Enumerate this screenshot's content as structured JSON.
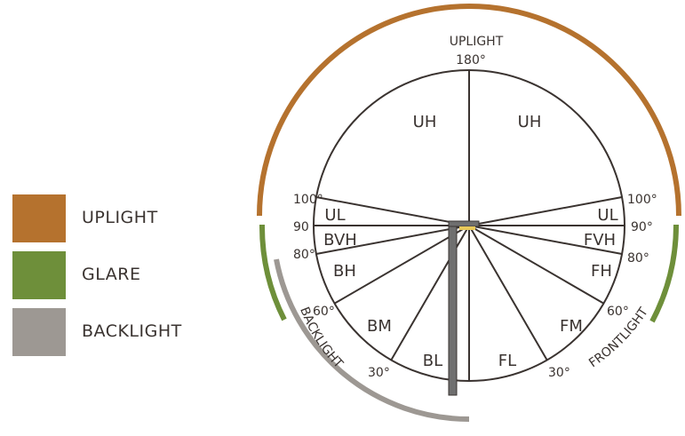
{
  "colors": {
    "uplight": "#b5722e",
    "glare": "#6e8f3a",
    "backlight": "#9d9893",
    "line": "#3a3330",
    "pole": "#6f6f6f",
    "lamp": "#e9c95a"
  },
  "legend": [
    {
      "key": "uplight",
      "label": "UPLIGHT"
    },
    {
      "key": "glare",
      "label": "GLARE"
    },
    {
      "key": "backlight",
      "label": "BACKLIGHT"
    }
  ],
  "diagram": {
    "top_heading": "UPLIGHT",
    "top_angle": "180°",
    "left_angles": {
      "a100": "100°",
      "a90": "90",
      "a80": "80°",
      "a60": "60°",
      "a30": "30°"
    },
    "right_angles": {
      "a100": "100°",
      "a90": "90°",
      "a80": "80°",
      "a60": "60°",
      "a30": "30°"
    },
    "zones": {
      "uh_left": "UH",
      "uh_right": "UH",
      "ul_left": "UL",
      "ul_right": "UL",
      "bvh": "BVH",
      "fvh": "FVH",
      "bh": "BH",
      "fh": "FH",
      "bm": "BM",
      "fm": "FM",
      "bl": "BL",
      "fl": "FL"
    },
    "arc_labels": {
      "backlight": "BACKLIGHT",
      "frontlight": "FRONTLIGHT"
    }
  }
}
